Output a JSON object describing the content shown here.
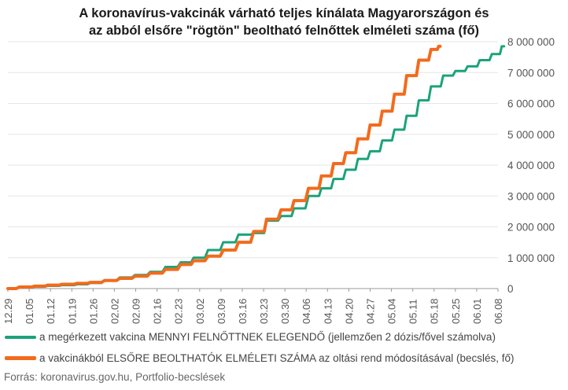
{
  "chart_data": {
    "type": "line",
    "title_line1": "A koronavírus-vakcinák várható teljes kínálata Magyarországon és",
    "title_line2": "az abból elsőre \"rögtön\" beoltható felnőttek elméleti száma (fő)",
    "x_ticks": [
      "12.29",
      "01.05",
      "01.12",
      "01.19",
      "01.26",
      "02.02",
      "02.09",
      "02.16",
      "02.23",
      "03.02",
      "03.09",
      "03.16",
      "03.23",
      "03.30",
      "04.06",
      "04.13",
      "04.20",
      "04.27",
      "05.04",
      "05.11",
      "05.18",
      "05.25",
      "06.01",
      "06.08"
    ],
    "y_ticks": [
      "0",
      "1 000 000",
      "2 000 000",
      "3 000 000",
      "4 000 000",
      "5 000 000",
      "6 000 000",
      "7 000 000",
      "8 000 000"
    ],
    "ylim": [
      0,
      8000000
    ],
    "y_axis_side": "right",
    "series": [
      {
        "name": "a megérkezett vakcina MENNYI FELNŐTTNEK ELEGENDŐ (jellemzően 2 dózis/fővel számolva)",
        "color": "#1aa37a",
        "x": [
          "12.29",
          "01.03",
          "01.08",
          "01.12",
          "01.17",
          "01.22",
          "01.26",
          "01.31",
          "02.05",
          "02.10",
          "02.15",
          "02.20",
          "02.25",
          "03.01",
          "03.06",
          "03.11",
          "03.16",
          "03.21",
          "03.25",
          "03.30",
          "04.03",
          "04.08",
          "04.12",
          "04.16",
          "04.20",
          "04.24",
          "04.28",
          "05.02",
          "05.06",
          "05.10",
          "05.14",
          "05.18",
          "05.22",
          "05.26",
          "05.30",
          "06.03",
          "06.07",
          "06.10"
        ],
        "values": [
          0,
          40000,
          60000,
          90000,
          110000,
          140000,
          180000,
          270000,
          360000,
          440000,
          540000,
          700000,
          850000,
          1000000,
          1250000,
          1500000,
          1750000,
          1800000,
          2200000,
          2350000,
          2600000,
          3000000,
          3250000,
          3550000,
          3850000,
          4200000,
          4450000,
          4800000,
          5150000,
          5600000,
          6100000,
          6550000,
          6900000,
          7050000,
          7200000,
          7400000,
          7600000,
          7850000
        ]
      },
      {
        "name": "a vakcinákból ELSŐRE BEOLTHATÓK ELMÉLETI SZÁMA az oltási rend módosításával (becslés, fő)",
        "color": "#f26b1d",
        "x": [
          "12.29",
          "01.03",
          "01.08",
          "01.12",
          "01.17",
          "01.22",
          "01.26",
          "01.31",
          "02.05",
          "02.10",
          "02.15",
          "02.20",
          "02.25",
          "03.01",
          "03.06",
          "03.11",
          "03.16",
          "03.21",
          "03.25",
          "03.30",
          "04.03",
          "04.08",
          "04.12",
          "04.16",
          "04.20",
          "04.24",
          "04.28",
          "05.02",
          "05.06",
          "05.10",
          "05.14",
          "05.18",
          "05.20"
        ],
        "values": [
          0,
          50000,
          80000,
          110000,
          140000,
          170000,
          200000,
          260000,
          330000,
          400000,
          500000,
          620000,
          780000,
          900000,
          1050000,
          1250000,
          1500000,
          1850000,
          2250000,
          2550000,
          2850000,
          3250000,
          3650000,
          4050000,
          4400000,
          4850000,
          5300000,
          5750000,
          6300000,
          6900000,
          7400000,
          7750000,
          7850000
        ]
      }
    ]
  },
  "source": "Forrás: koronavirus.gov.hu, Portfolio-becslések"
}
